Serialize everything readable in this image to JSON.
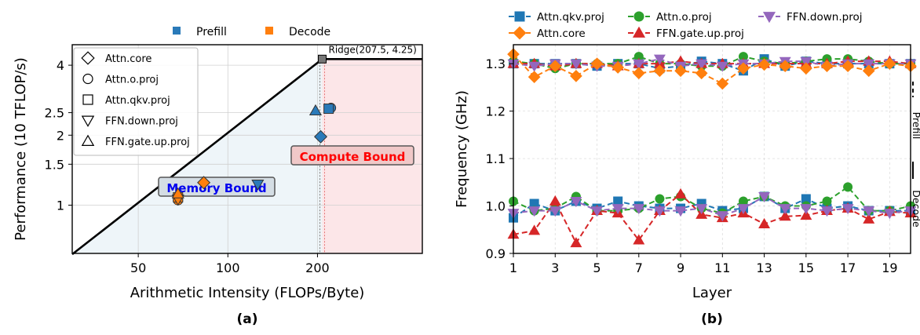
{
  "chart_data": [
    {
      "panel_label": "(a)",
      "type": "scatter",
      "title": "",
      "xlabel": "Arithmetic Intensity (FLOPs/Byte)",
      "ylabel": "Performance (10 TFLOP/s)",
      "x_scale": "log",
      "y_scale": "log",
      "xlim": [
        30,
        450
      ],
      "ylim": [
        0.62,
        4.9
      ],
      "x_ticks": [
        {
          "value": 50,
          "label": "50"
        },
        {
          "value": 100,
          "label": "100"
        },
        {
          "value": 200,
          "label": "200"
        }
      ],
      "y_ticks": [
        {
          "value": 1,
          "label": "1"
        },
        {
          "value": 1.5,
          "label": "1.5"
        },
        {
          "value": 2,
          "label": "2"
        },
        {
          "value": 2.5,
          "label": "2.5"
        },
        {
          "value": 4,
          "label": "4"
        }
      ],
      "ridge": {
        "x": 207.5,
        "y": 4.25,
        "label": "Ridge(207.5, 4.25)"
      },
      "regions": [
        {
          "name": "memory-bound",
          "label": "Memory Bound",
          "color": "#2a7ab0",
          "text_color": "#0000ee"
        },
        {
          "name": "compute-bound",
          "label": "Compute Bound",
          "color": "#e8505b",
          "text_color": "#ff0000"
        }
      ],
      "phase_legend": [
        {
          "label": "Prefill",
          "color": "#2a7ab9"
        },
        {
          "label": "Decode",
          "color": "#ff7f0e"
        }
      ],
      "marker_legend": [
        {
          "label": "Attn.core",
          "marker": "diamond"
        },
        {
          "label": "Attn.o.proj",
          "marker": "circle"
        },
        {
          "label": "Attn.qkv.proj",
          "marker": "square"
        },
        {
          "label": "FFN.down.proj",
          "marker": "triangle-down"
        },
        {
          "label": "FFN.gate.up.proj",
          "marker": "triangle-up"
        }
      ],
      "points": [
        {
          "op": "Attn.core",
          "phase": "Prefill",
          "marker": "diamond",
          "x": 205,
          "y": 1.97
        },
        {
          "op": "Attn.o.proj",
          "phase": "Prefill",
          "marker": "circle",
          "x": 222,
          "y": 2.62
        },
        {
          "op": "Attn.qkv.proj",
          "phase": "Prefill",
          "marker": "square",
          "x": 218,
          "y": 2.6
        },
        {
          "op": "FFN.gate.up.proj",
          "phase": "Prefill",
          "marker": "triangle-up",
          "x": 197,
          "y": 2.55
        },
        {
          "op": "FFN.down.proj",
          "phase": "Prefill",
          "marker": "triangle-down",
          "x": 126,
          "y": 1.23
        },
        {
          "op": "Attn.core",
          "phase": "Decode",
          "marker": "diamond",
          "x": 83,
          "y": 1.25
        },
        {
          "op": "Attn.o.proj",
          "phase": "Decode",
          "marker": "circle",
          "x": 68,
          "y": 1.05
        },
        {
          "op": "Attn.qkv.proj",
          "phase": "Decode",
          "marker": "square",
          "x": 68,
          "y": 1.08
        },
        {
          "op": "FFN.down.proj",
          "phase": "Decode",
          "marker": "triangle-down",
          "x": 68,
          "y": 1.06
        },
        {
          "op": "FFN.gate.up.proj",
          "phase": "Decode",
          "marker": "triangle-up",
          "x": 68,
          "y": 1.12
        }
      ]
    },
    {
      "panel_label": "(b)",
      "type": "line",
      "title": "",
      "xlabel": "Layer",
      "ylabel": "Frequency (GHz)",
      "xlim": [
        1,
        20
      ],
      "ylim": [
        0.9,
        1.34
      ],
      "x_ticks": [
        1,
        3,
        5,
        7,
        9,
        11,
        13,
        15,
        17,
        19
      ],
      "y_ticks": [
        {
          "value": 0.9,
          "label": "0.9"
        },
        {
          "value": 1.0,
          "label": "1.0"
        },
        {
          "value": 1.1,
          "label": "1.1"
        },
        {
          "value": 1.2,
          "label": "1.2"
        },
        {
          "value": 1.3,
          "label": "1.3"
        }
      ],
      "x": [
        1,
        2,
        3,
        4,
        5,
        6,
        7,
        8,
        9,
        10,
        11,
        12,
        13,
        14,
        15,
        16,
        17,
        18,
        19,
        20
      ],
      "line_style_legend": [
        {
          "label": "Prefill",
          "style": "dashed"
        },
        {
          "label": "Decode",
          "style": "solid"
        }
      ],
      "series": [
        {
          "name": "Attn.qkv.proj",
          "color": "#1f77b4",
          "marker": "square",
          "phase": "Prefill",
          "values": [
            1.3,
            1.3,
            1.3,
            1.3,
            1.295,
            1.3,
            1.3,
            1.29,
            1.295,
            1.305,
            1.3,
            1.285,
            1.31,
            1.295,
            1.305,
            1.3,
            1.3,
            1.3,
            1.3,
            1.3
          ]
        },
        {
          "name": "Attn.o.proj",
          "color": "#2ca02c",
          "marker": "circle",
          "phase": "Prefill",
          "values": [
            1.305,
            1.3,
            1.29,
            1.3,
            1.3,
            1.3,
            1.315,
            1.3,
            1.3,
            1.295,
            1.295,
            1.315,
            1.305,
            1.3,
            1.305,
            1.31,
            1.31,
            1.305,
            1.3,
            1.3
          ]
        },
        {
          "name": "FFN.gate.up.proj",
          "color": "#d62728",
          "marker": "triangle-up",
          "phase": "Prefill",
          "values": [
            1.3,
            1.3,
            1.295,
            1.3,
            1.3,
            1.295,
            1.3,
            1.3,
            1.305,
            1.3,
            1.3,
            1.3,
            1.3,
            1.3,
            1.3,
            1.3,
            1.305,
            1.305,
            1.305,
            1.3
          ]
        },
        {
          "name": "FFN.down.proj",
          "color": "#9467bd",
          "marker": "triangle-down",
          "phase": "Prefill",
          "values": [
            1.3,
            1.295,
            1.3,
            1.3,
            1.295,
            1.295,
            1.3,
            1.31,
            1.295,
            1.3,
            1.295,
            1.3,
            1.3,
            1.305,
            1.305,
            1.295,
            1.3,
            1.3,
            1.3,
            1.3
          ]
        },
        {
          "name": "Attn.core",
          "color": "#ff7f0e",
          "marker": "diamond",
          "phase": "Prefill",
          "values": [
            1.32,
            1.272,
            1.295,
            1.274,
            1.3,
            1.292,
            1.28,
            1.285,
            1.285,
            1.28,
            1.258,
            1.29,
            1.298,
            1.295,
            1.29,
            1.295,
            1.295,
            1.285,
            1.3,
            1.295
          ]
        },
        {
          "name": "Attn.qkv.proj",
          "color": "#1f77b4",
          "marker": "square",
          "phase": "Decode",
          "values": [
            0.975,
            1.005,
            0.99,
            1.01,
            0.995,
            1.01,
            1.0,
            0.995,
            0.995,
            1.005,
            0.99,
            0.995,
            1.02,
            0.995,
            1.015,
            0.995,
            1.0,
            0.99,
            0.99,
            0.99
          ]
        },
        {
          "name": "Attn.o.proj",
          "color": "#2ca02c",
          "marker": "circle",
          "phase": "Decode",
          "values": [
            1.01,
            0.99,
            0.995,
            1.02,
            0.99,
            0.99,
            0.995,
            1.015,
            1.02,
            0.995,
            0.985,
            1.01,
            1.02,
            1.0,
            1.0,
            1.01,
            1.04,
            0.99,
            0.99,
            1.0
          ]
        },
        {
          "name": "FFN.gate.up.proj",
          "color": "#d62728",
          "marker": "triangle-up",
          "phase": "Decode",
          "values": [
            0.94,
            0.948,
            1.01,
            0.922,
            0.99,
            0.985,
            0.928,
            0.99,
            1.025,
            0.982,
            0.975,
            0.985,
            0.962,
            0.978,
            0.98,
            0.99,
            0.995,
            0.972,
            0.988,
            0.985
          ]
        },
        {
          "name": "FFN.down.proj",
          "color": "#9467bd",
          "marker": "triangle-down",
          "phase": "Decode",
          "values": [
            0.985,
            0.99,
            0.99,
            1.01,
            0.99,
            0.995,
            0.995,
            0.99,
            0.99,
            0.995,
            0.98,
            0.995,
            1.02,
            0.995,
            0.995,
            0.99,
            0.995,
            0.99,
            0.985,
            0.99
          ]
        }
      ]
    }
  ]
}
